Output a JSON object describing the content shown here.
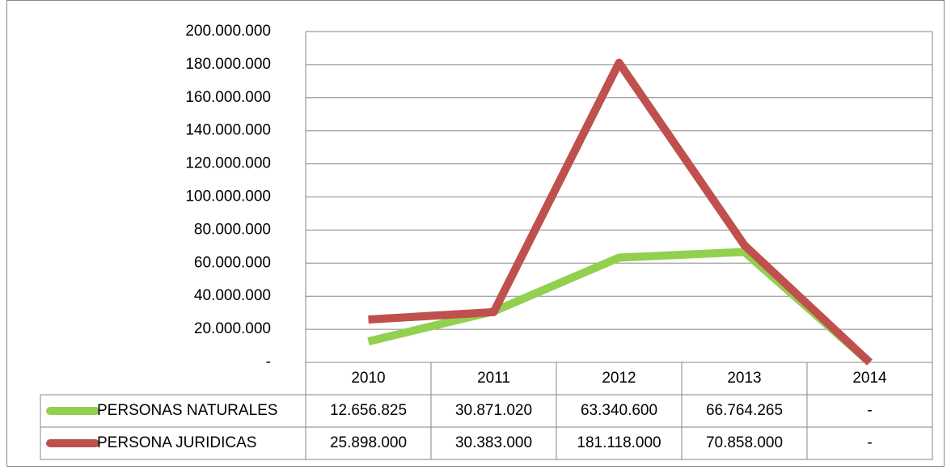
{
  "chart_data": {
    "type": "line",
    "categories": [
      "2010",
      "2011",
      "2012",
      "2013",
      "2014"
    ],
    "series": [
      {
        "name": "PERSONAS NATURALES",
        "color": "#92d050",
        "values": [
          12656825,
          30871020,
          63340600,
          66764265,
          0
        ],
        "value_labels": [
          "12.656.825",
          "30.871.020",
          "63.340.600",
          "66.764.265",
          "-"
        ]
      },
      {
        "name": "PERSONA JURIDICAS",
        "color": "#c0504d",
        "values": [
          25898000,
          30383000,
          181118000,
          70858000,
          0
        ],
        "value_labels": [
          "25.898.000",
          "30.383.000",
          "181.118.000",
          "70.858.000",
          "-"
        ]
      }
    ],
    "ylim": [
      0,
      200000000
    ],
    "yticks": [
      {
        "value": 0,
        "label": "-"
      },
      {
        "value": 20000000,
        "label": "20.000.000"
      },
      {
        "value": 40000000,
        "label": "40.000.000"
      },
      {
        "value": 60000000,
        "label": "60.000.000"
      },
      {
        "value": 80000000,
        "label": "80.000.000"
      },
      {
        "value": 100000000,
        "label": "100.000.000"
      },
      {
        "value": 120000000,
        "label": "120.000.000"
      },
      {
        "value": 140000000,
        "label": "140.000.000"
      },
      {
        "value": 160000000,
        "label": "160.000.000"
      },
      {
        "value": 180000000,
        "label": "180.000.000"
      },
      {
        "value": 200000000,
        "label": "200.000.000"
      }
    ],
    "grid": true
  }
}
